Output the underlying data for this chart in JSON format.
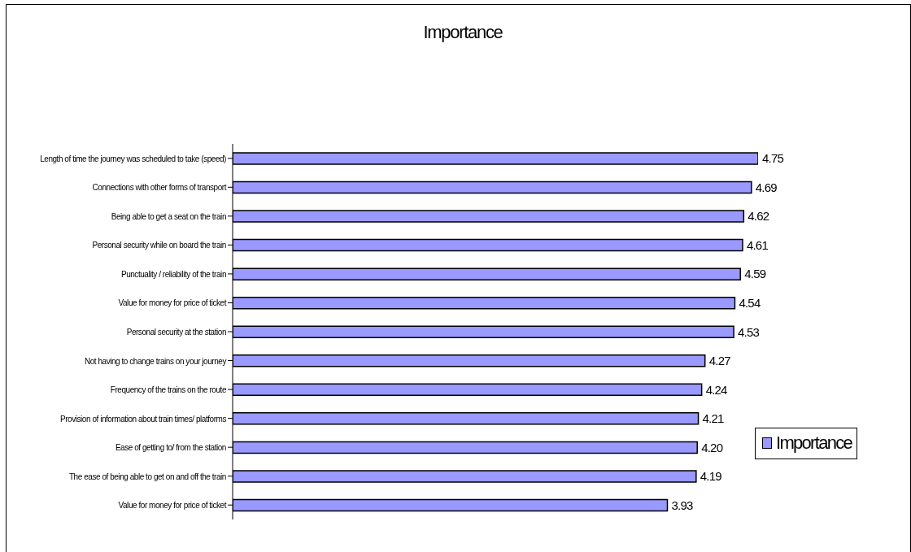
{
  "chart_data": {
    "type": "bar",
    "orientation": "horizontal",
    "title": "Importance",
    "categories": [
      "Length of time the journey was scheduled to take (speed)",
      "Connections with other forms of transport",
      "Being able to get a seat on the train",
      "Personal security while on board the train",
      "Punctuality / reliability of the train",
      "Value for money for price of ticket",
      "Personal security at the station",
      "Not having to change trains on your journey",
      "Frequency of the trains on the route",
      "Provision of information about train times/ platforms",
      "Ease of getting to/ from the station",
      "The ease of being able to get on and off the train",
      "Value for money for price of ticket"
    ],
    "series": [
      {
        "name": "Importance",
        "color": "#9999ff",
        "values": [
          4.75,
          4.69,
          4.62,
          4.61,
          4.59,
          4.54,
          4.53,
          4.27,
          4.24,
          4.21,
          4.2,
          4.19,
          3.93
        ],
        "value_labels": [
          "4.75",
          "4.69",
          "4.62",
          "4.61",
          "4.59",
          "4.54",
          "4.53",
          "4.27",
          "4.24",
          "4.21",
          "4.20",
          "4.19",
          "3.93"
        ]
      }
    ],
    "legend": "right"
  }
}
